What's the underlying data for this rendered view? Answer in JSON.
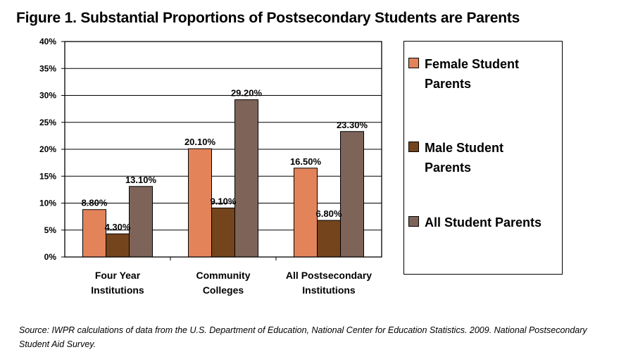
{
  "chart_data": {
    "type": "bar",
    "title": "Figure 1. Substantial Proportions of Postsecondary Students are Parents",
    "categories": [
      [
        "Four Year",
        "Institutions"
      ],
      [
        "Community",
        "Colleges"
      ],
      [
        "All Postsecondary",
        "Institutions"
      ]
    ],
    "series": [
      {
        "name": "Female Student Parents",
        "legend_lines": [
          "Female Student",
          "Parents"
        ],
        "color": "#e3835a",
        "values": [
          8.8,
          20.1,
          16.5
        ],
        "labels": [
          "8.80%",
          "20.10%",
          "16.50%"
        ]
      },
      {
        "name": "Male Student Parents",
        "legend_lines": [
          "Male Student",
          "Parents"
        ],
        "color": "#74451c",
        "values": [
          4.3,
          9.1,
          6.8
        ],
        "labels": [
          "4.30%",
          "9.10%",
          "6.80%"
        ]
      },
      {
        "name": "All Student Parents",
        "legend_lines": [
          "All Student Parents"
        ],
        "color": "#7e6358",
        "values": [
          13.1,
          29.2,
          23.3
        ],
        "labels": [
          "13.10%",
          "29.20%",
          "23.30%"
        ]
      }
    ],
    "ylim": [
      0,
      40
    ],
    "yticks": [
      0,
      5,
      10,
      15,
      20,
      25,
      30,
      35,
      40
    ],
    "ytick_labels": [
      "0%",
      "5%",
      "10%",
      "15%",
      "20%",
      "25%",
      "30%",
      "35%",
      "40%"
    ],
    "grid": true,
    "legend": "right",
    "xlabel": "",
    "ylabel": ""
  },
  "source_note": "Source: IWPR calculations of data from the U.S. Department of Education, National Center for Education Statistics.  2009. National Postsecondary Student Aid Survey."
}
